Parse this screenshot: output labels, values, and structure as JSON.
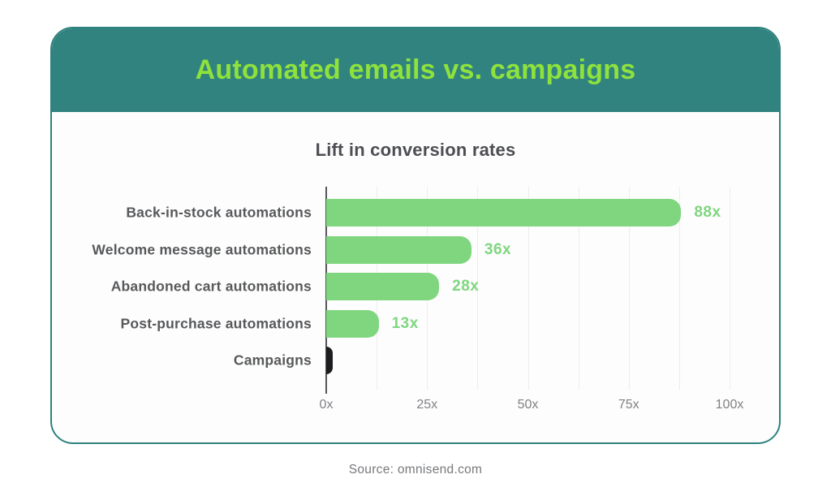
{
  "header": {
    "title": "Automated emails vs. campaigns"
  },
  "footer": {
    "source": "Source: omnisend.com"
  },
  "colors": {
    "header_bg": "#318380",
    "header_title": "#8EE23B",
    "bar_green": "#7FD67F",
    "bar_black": "#1D1D1F",
    "value_label": "#7FD67F",
    "category_label": "#58595B",
    "chart_title": "#4D4E53",
    "tick_label": "#808184",
    "axis_line": "#55565A",
    "gridline": "#EDEDED",
    "card_border": "#2E827E",
    "card_bg": "#FDFDFD",
    "source_text": "#77787B"
  },
  "chart_data": {
    "type": "bar",
    "orientation": "horizontal",
    "title": "Lift in conversion rates",
    "categories": [
      "Back-in-stock automations",
      "Welcome message automations",
      "Abandoned cart automations",
      "Post-purchase automations",
      "Campaigns"
    ],
    "values": [
      88,
      36,
      28,
      13,
      1
    ],
    "value_labels": [
      "88x",
      "36x",
      "28x",
      "13x",
      ""
    ],
    "bar_colors": [
      "#7FD67F",
      "#7FD67F",
      "#7FD67F",
      "#7FD67F",
      "#1D1D1F"
    ],
    "xlabel": "",
    "ylabel": "",
    "xlim": [
      0,
      100
    ],
    "x_ticks": [
      0,
      25,
      50,
      75,
      100
    ],
    "x_tick_labels": [
      "0x",
      "25x",
      "50x",
      "75x",
      "100x"
    ],
    "grid": "vertical",
    "grid_step": 12.5,
    "legend": "none"
  }
}
